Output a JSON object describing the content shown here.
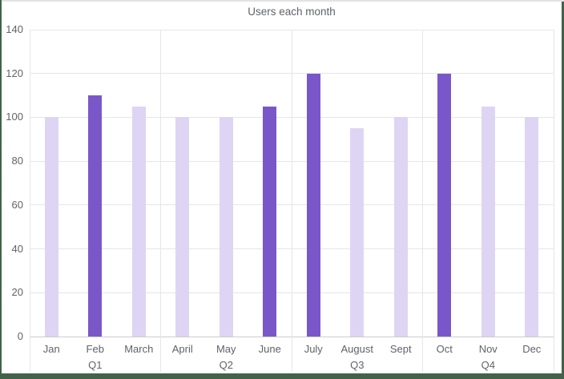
{
  "chart_data": {
    "type": "bar",
    "title": "Users each month",
    "categories": [
      "Jan",
      "Feb",
      "March",
      "April",
      "May",
      "June",
      "July",
      "August",
      "Sept",
      "Oct",
      "Nov",
      "Dec"
    ],
    "values": [
      100,
      110,
      105,
      100,
      100,
      105,
      120,
      95,
      100,
      120,
      105,
      100
    ],
    "highlighted_categories": [
      "Feb",
      "June",
      "July",
      "Oct"
    ],
    "quarters": [
      {
        "label": "Q1",
        "categories": [
          "Jan",
          "Feb",
          "March"
        ]
      },
      {
        "label": "Q2",
        "categories": [
          "April",
          "May",
          "June"
        ]
      },
      {
        "label": "Q3",
        "categories": [
          "July",
          "August",
          "Sept"
        ]
      },
      {
        "label": "Q4",
        "categories": [
          "Oct",
          "Nov",
          "Dec"
        ]
      }
    ],
    "xlabel": "",
    "ylabel": "",
    "ylim": [
      0,
      140
    ],
    "y_ticks": [
      0,
      20,
      40,
      60,
      80,
      100,
      120,
      140
    ],
    "grid": true,
    "legend": "none",
    "bar_color_default": "#ded5f4",
    "bar_color_highlighted": "#7a57c9"
  },
  "colors": {
    "background": "#ffffff",
    "frame_border_green": "#426349",
    "frame_border_top": "#e2e2e2",
    "gridline": "#e6e6e6",
    "baseline": "#cccccc",
    "label_text": "#5f6368"
  }
}
